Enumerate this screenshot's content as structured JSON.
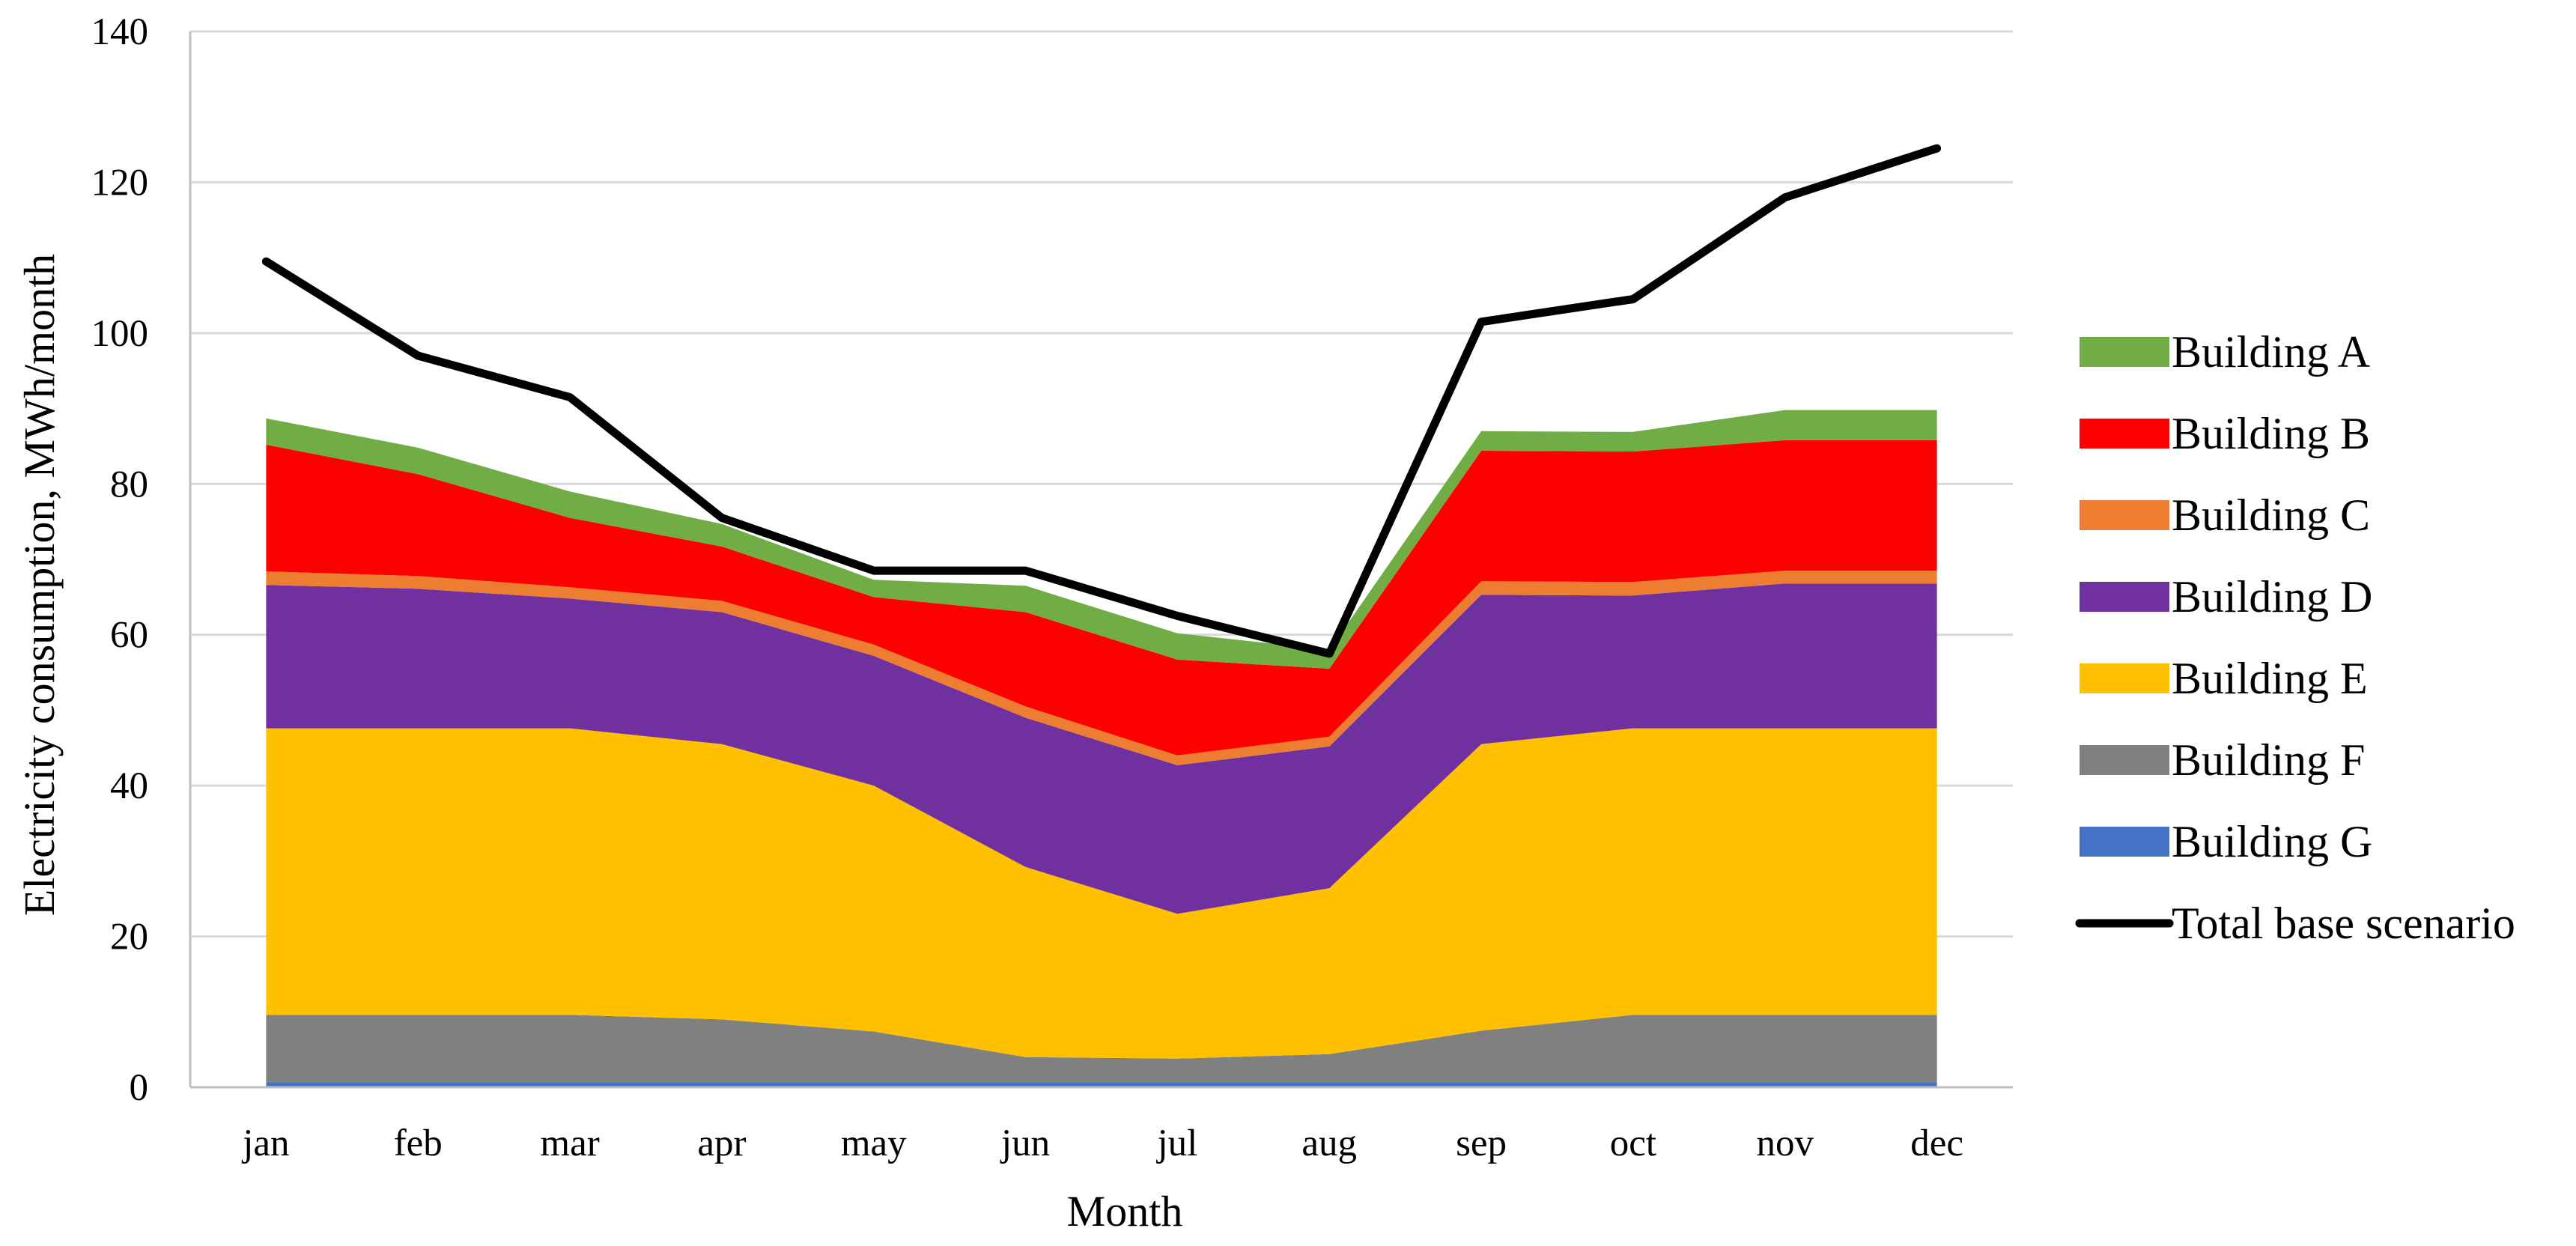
{
  "chart_data": {
    "type": "area",
    "stacked": true,
    "title": "",
    "xlabel": "Month",
    "ylabel": "Electricity consumption, MWh/month",
    "ylim": [
      0,
      140
    ],
    "yticks": [
      "0",
      "20",
      "40",
      "60",
      "80",
      "100",
      "120",
      "140"
    ],
    "ytick_values": [
      0,
      20,
      40,
      60,
      80,
      100,
      120,
      140
    ],
    "categories": [
      "jan",
      "feb",
      "mar",
      "apr",
      "may",
      "jun",
      "jul",
      "aug",
      "sep",
      "oct",
      "nov",
      "dec"
    ],
    "grid": true,
    "legend_position": "right",
    "series": [
      {
        "name": "Building G",
        "color": "#4472c4",
        "values": [
          0.6,
          0.6,
          0.6,
          0.6,
          0.6,
          0.6,
          0.6,
          0.6,
          0.6,
          0.6,
          0.6,
          0.6
        ]
      },
      {
        "name": "Building F",
        "color": "#808080",
        "values": [
          9.0,
          9.0,
          9.0,
          8.4,
          6.8,
          3.4,
          3.2,
          3.8,
          6.9,
          9.0,
          9.0,
          9.0
        ]
      },
      {
        "name": "Building E",
        "color": "#ffc000",
        "values": [
          38.0,
          38.0,
          38.0,
          36.5,
          32.6,
          25.2,
          19.2,
          22.0,
          38.0,
          38.0,
          38.0,
          38.0
        ]
      },
      {
        "name": "Building D",
        "color": "#7030a0",
        "values": [
          19.0,
          18.5,
          17.2,
          17.5,
          17.2,
          19.8,
          19.7,
          18.8,
          19.8,
          17.6,
          19.2,
          19.2
        ]
      },
      {
        "name": "Building C",
        "color": "#ed7d31",
        "values": [
          1.8,
          1.7,
          1.5,
          1.5,
          1.5,
          1.5,
          1.3,
          1.3,
          1.8,
          1.8,
          1.7,
          1.7
        ]
      },
      {
        "name": "Building B",
        "color": "#ff0000",
        "values": [
          16.8,
          13.5,
          9.2,
          7.2,
          6.3,
          12.5,
          12.7,
          9.0,
          17.3,
          17.3,
          17.3,
          17.3
        ]
      },
      {
        "name": "Building A",
        "color": "#70ad47",
        "values": [
          3.5,
          3.5,
          3.5,
          3.0,
          2.3,
          3.5,
          3.5,
          2.5,
          2.6,
          2.6,
          4.0,
          4.0
        ]
      }
    ],
    "line_series": {
      "name": "Total base scenario",
      "color": "#000000",
      "values": [
        109.5,
        97.0,
        91.5,
        75.5,
        68.5,
        68.5,
        62.5,
        57.5,
        101.5,
        104.5,
        118.0,
        124.5
      ]
    },
    "legend": [
      {
        "name": "Building A",
        "color": "#70ad47",
        "kind": "area"
      },
      {
        "name": "Building B",
        "color": "#ff0000",
        "kind": "area"
      },
      {
        "name": "Building C",
        "color": "#ed7d31",
        "kind": "area"
      },
      {
        "name": "Building D",
        "color": "#7030a0",
        "kind": "area"
      },
      {
        "name": "Building E",
        "color": "#ffc000",
        "kind": "area"
      },
      {
        "name": "Building F",
        "color": "#808080",
        "kind": "area"
      },
      {
        "name": "Building G",
        "color": "#4472c4",
        "kind": "area"
      },
      {
        "name": "Total base scenario",
        "color": "#000000",
        "kind": "line"
      }
    ]
  }
}
